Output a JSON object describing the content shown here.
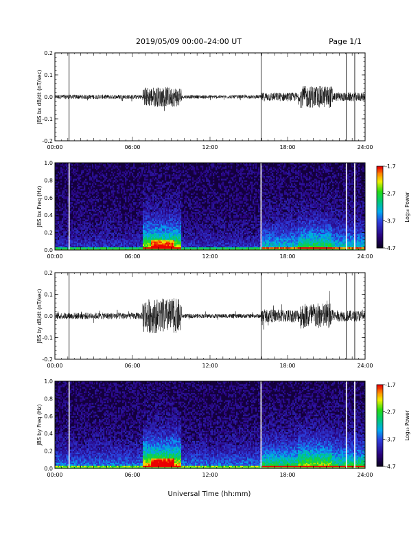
{
  "header": {
    "title": "2019/05/09  00:00–24:00 UT",
    "page": "Page 1/1"
  },
  "xaxis": {
    "title": "Universal Time (hh:mm)",
    "ticks": [
      "00:00",
      "06:00",
      "12:00",
      "18:00",
      "24:00"
    ]
  },
  "colorbar": {
    "label": "Log₁₀ Power",
    "ticks": [
      "-1.7",
      "-2.7",
      "-3.7",
      "-4.7"
    ],
    "range": [
      -4.7,
      -1.7
    ]
  },
  "chart_data": [
    {
      "type": "line",
      "ylabel": "JBS bx dB/dt (nT/sec)",
      "xlim": [
        0,
        24
      ],
      "ylim": [
        -0.2,
        0.2
      ],
      "yticks": [
        "0.2",
        "0.1",
        "0.0",
        "-0.1",
        "-0.2"
      ],
      "grid": false,
      "data_gaps_hours": [
        1.1,
        15.95,
        22.55,
        23.2
      ],
      "activity": [
        {
          "x_start": 0.0,
          "x_end": 6.8,
          "y_amplitude": 0.01
        },
        {
          "x_start": 6.8,
          "x_end": 9.8,
          "y_amplitude": 0.045
        },
        {
          "x_start": 9.8,
          "x_end": 16.0,
          "y_amplitude": 0.008
        },
        {
          "x_start": 16.0,
          "x_end": 19.0,
          "y_amplitude": 0.02
        },
        {
          "x_start": 19.0,
          "x_end": 21.5,
          "y_amplitude": 0.05
        },
        {
          "x_start": 21.5,
          "x_end": 24.0,
          "y_amplitude": 0.02
        }
      ]
    },
    {
      "type": "heatmap",
      "ylabel": "JBS bx Freq (Hz)",
      "xlim": [
        0,
        24
      ],
      "ylim": [
        0,
        1
      ],
      "yticks": [
        "1.0",
        "0.8",
        "0.6",
        "0.4",
        "0.2",
        "0.0"
      ],
      "data_gaps_hours": [
        1.1,
        15.95,
        22.55,
        23.2
      ],
      "zrange": [
        -4.7,
        -1.7
      ]
    },
    {
      "type": "line",
      "ylabel": "JBS by dB/dt (nT/sec)",
      "xlim": [
        0,
        24
      ],
      "ylim": [
        -0.2,
        0.2
      ],
      "yticks": [
        "0.2",
        "0.1",
        "0.0",
        "-0.1",
        "-0.2"
      ],
      "grid": false,
      "data_gaps_hours": [
        1.1,
        15.95,
        22.55,
        23.2
      ],
      "activity": [
        {
          "x_start": 0.0,
          "x_end": 6.8,
          "y_amplitude": 0.015
        },
        {
          "x_start": 6.8,
          "x_end": 9.8,
          "y_amplitude": 0.08
        },
        {
          "x_start": 9.8,
          "x_end": 16.0,
          "y_amplitude": 0.01
        },
        {
          "x_start": 16.0,
          "x_end": 19.0,
          "y_amplitude": 0.03
        },
        {
          "x_start": 19.0,
          "x_end": 21.5,
          "y_amplitude": 0.06
        },
        {
          "x_start": 21.5,
          "x_end": 24.0,
          "y_amplitude": 0.025
        }
      ]
    },
    {
      "type": "heatmap",
      "ylabel": "JBS by Freq (Hz)",
      "xlim": [
        0,
        24
      ],
      "ylim": [
        0,
        1
      ],
      "yticks": [
        "1.0",
        "0.8",
        "0.6",
        "0.4",
        "0.2",
        "0.0"
      ],
      "data_gaps_hours": [
        1.1,
        15.95,
        22.55,
        23.2
      ],
      "zrange": [
        -4.7,
        -1.7
      ]
    }
  ]
}
